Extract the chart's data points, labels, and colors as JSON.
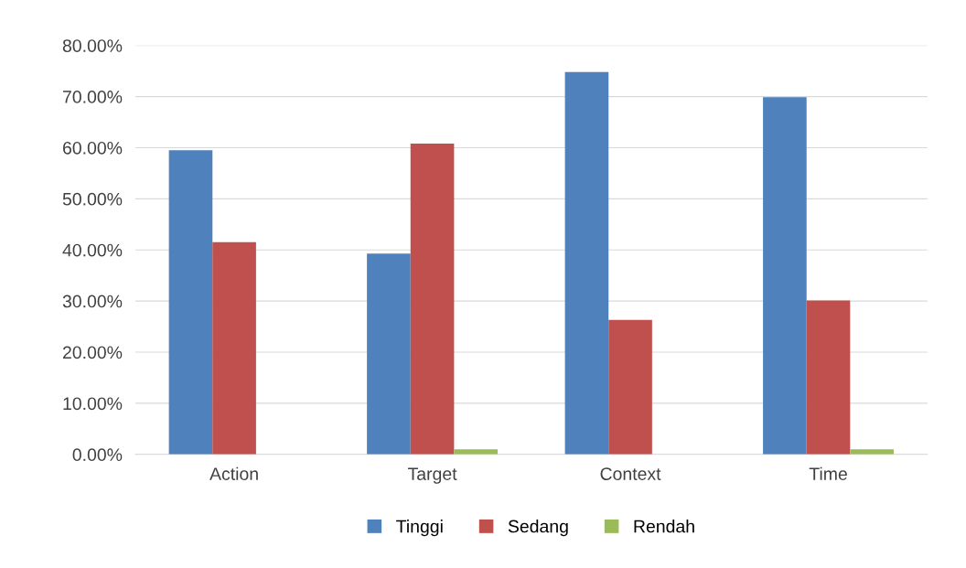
{
  "chart_data": {
    "type": "bar",
    "categories": [
      "Action",
      "Target",
      "Context",
      "Time"
    ],
    "series": [
      {
        "name": "Tinggi",
        "color": "#4f81bd",
        "values": [
          59.5,
          39.3,
          74.8,
          69.9
        ]
      },
      {
        "name": "Sedang",
        "color": "#c0504d",
        "values": [
          41.5,
          60.8,
          26.3,
          30.1
        ]
      },
      {
        "name": "Rendah",
        "color": "#9bbb59",
        "values": [
          0,
          1,
          0,
          1
        ]
      }
    ],
    "ylim": [
      0,
      80
    ],
    "yticks": [
      {
        "value": 0,
        "label": "0.00%"
      },
      {
        "value": 10,
        "label": "10.00%"
      },
      {
        "value": 20,
        "label": "20.00%"
      },
      {
        "value": 30,
        "label": "30.00%"
      },
      {
        "value": 40,
        "label": "40.00%"
      },
      {
        "value": 50,
        "label": "50.00%"
      },
      {
        "value": 60,
        "label": "60.00%"
      },
      {
        "value": 70,
        "label": "70.00%"
      },
      {
        "value": 80,
        "label": "80.00%"
      }
    ],
    "grid": "y",
    "legend": "bottom"
  }
}
